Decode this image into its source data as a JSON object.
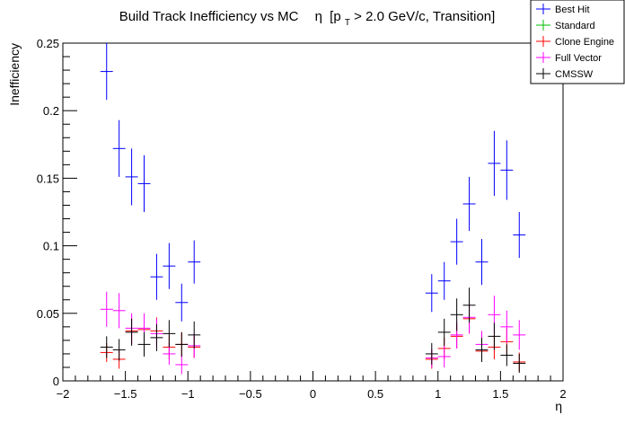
{
  "chart_data": {
    "type": "scatter",
    "title": "Build Track Inefficiency vs MC",
    "title_eta": "η",
    "title_bracket_open": "[p",
    "title_subscript": "T",
    "title_rest": " > 2.0 GeV/c, Transition]",
    "xlabel": "η",
    "ylabel": "Inefficiency",
    "xlim": [
      -2,
      2
    ],
    "ylim": [
      0,
      0.25
    ],
    "x_ticks": [
      -2,
      -1.5,
      -1,
      -0.5,
      0,
      0.5,
      1,
      1.5,
      2
    ],
    "x_tick_labels": [
      "−2",
      "−1.5",
      "−1",
      "−0.5",
      "0",
      "0.5",
      "1",
      "1.5",
      "2"
    ],
    "y_ticks": [
      0,
      0.05,
      0.1,
      0.15,
      0.2,
      0.25
    ],
    "y_tick_labels": [
      "0",
      "0.05",
      "0.1",
      "0.15",
      "0.2",
      "0.25"
    ],
    "bin_half_width": 0.05,
    "legend_position": "top-right",
    "series": [
      {
        "name": "Best Hit",
        "color": "#0000ff",
        "points": [
          {
            "x": -1.65,
            "y": 0.229,
            "err": 0.021
          },
          {
            "x": -1.55,
            "y": 0.172,
            "err": 0.021
          },
          {
            "x": -1.45,
            "y": 0.151,
            "err": 0.021
          },
          {
            "x": -1.35,
            "y": 0.146,
            "err": 0.021
          },
          {
            "x": -1.25,
            "y": 0.077,
            "err": 0.017
          },
          {
            "x": -1.15,
            "y": 0.085,
            "err": 0.017
          },
          {
            "x": -1.05,
            "y": 0.058,
            "err": 0.014
          },
          {
            "x": -0.95,
            "y": 0.088,
            "err": 0.016
          },
          {
            "x": 0.95,
            "y": 0.065,
            "err": 0.014
          },
          {
            "x": 1.05,
            "y": 0.074,
            "err": 0.014
          },
          {
            "x": 1.15,
            "y": 0.103,
            "err": 0.017
          },
          {
            "x": 1.25,
            "y": 0.131,
            "err": 0.02
          },
          {
            "x": 1.35,
            "y": 0.088,
            "err": 0.017
          },
          {
            "x": 1.45,
            "y": 0.161,
            "err": 0.024
          },
          {
            "x": 1.55,
            "y": 0.156,
            "err": 0.022
          },
          {
            "x": 1.65,
            "y": 0.108,
            "err": 0.017
          }
        ]
      },
      {
        "name": "Standard",
        "color": "#00bb00",
        "points": []
      },
      {
        "name": "Clone Engine",
        "color": "#ff0000",
        "points": [
          {
            "x": -1.65,
            "y": 0.021,
            "err": 0.007
          },
          {
            "x": -1.55,
            "y": 0.016,
            "err": 0.007
          },
          {
            "x": -1.45,
            "y": 0.037,
            "err": 0.01
          },
          {
            "x": -1.35,
            "y": 0.038,
            "err": 0.01
          },
          {
            "x": -1.25,
            "y": 0.037,
            "err": 0.01
          },
          {
            "x": -1.15,
            "y": 0.025,
            "err": 0.009
          },
          {
            "x": -1.05,
            "y": 0.027,
            "err": 0.009
          },
          {
            "x": -0.95,
            "y": 0.025,
            "err": 0.008
          },
          {
            "x": 0.95,
            "y": 0.016,
            "err": 0.007
          },
          {
            "x": 1.05,
            "y": 0.024,
            "err": 0.008
          },
          {
            "x": 1.15,
            "y": 0.033,
            "err": 0.009
          },
          {
            "x": 1.25,
            "y": 0.046,
            "err": 0.011
          },
          {
            "x": 1.35,
            "y": 0.022,
            "err": 0.008
          },
          {
            "x": 1.45,
            "y": 0.025,
            "err": 0.009
          },
          {
            "x": 1.55,
            "y": 0.029,
            "err": 0.01
          },
          {
            "x": 1.65,
            "y": 0.014,
            "err": 0.007
          }
        ]
      },
      {
        "name": "Full Vector",
        "color": "#ff00ff",
        "points": [
          {
            "x": -1.65,
            "y": 0.053,
            "err": 0.013
          },
          {
            "x": -1.55,
            "y": 0.052,
            "err": 0.013
          },
          {
            "x": -1.45,
            "y": 0.039,
            "err": 0.011
          },
          {
            "x": -1.35,
            "y": 0.039,
            "err": 0.011
          },
          {
            "x": -1.25,
            "y": 0.035,
            "err": 0.011
          },
          {
            "x": -1.15,
            "y": 0.02,
            "err": 0.008
          },
          {
            "x": -1.05,
            "y": 0.012,
            "err": 0.007
          },
          {
            "x": -0.95,
            "y": 0.026,
            "err": 0.009
          },
          {
            "x": 0.95,
            "y": 0.017,
            "err": 0.007
          },
          {
            "x": 1.05,
            "y": 0.018,
            "err": 0.008
          },
          {
            "x": 1.15,
            "y": 0.034,
            "err": 0.01
          },
          {
            "x": 1.25,
            "y": 0.047,
            "err": 0.012
          },
          {
            "x": 1.35,
            "y": 0.027,
            "err": 0.01
          },
          {
            "x": 1.45,
            "y": 0.049,
            "err": 0.014
          },
          {
            "x": 1.55,
            "y": 0.04,
            "err": 0.012
          },
          {
            "x": 1.65,
            "y": 0.034,
            "err": 0.011
          }
        ]
      },
      {
        "name": "CMSSW",
        "color": "#000000",
        "points": [
          {
            "x": -1.65,
            "y": 0.025,
            "err": 0.008
          },
          {
            "x": -1.55,
            "y": 0.023,
            "err": 0.008
          },
          {
            "x": -1.45,
            "y": 0.036,
            "err": 0.01
          },
          {
            "x": -1.35,
            "y": 0.027,
            "err": 0.009
          },
          {
            "x": -1.25,
            "y": 0.032,
            "err": 0.01
          },
          {
            "x": -1.15,
            "y": 0.035,
            "err": 0.01
          },
          {
            "x": -1.05,
            "y": 0.027,
            "err": 0.009
          },
          {
            "x": -0.95,
            "y": 0.034,
            "err": 0.01
          },
          {
            "x": 0.95,
            "y": 0.02,
            "err": 0.008
          },
          {
            "x": 1.05,
            "y": 0.036,
            "err": 0.01
          },
          {
            "x": 1.15,
            "y": 0.049,
            "err": 0.012
          },
          {
            "x": 1.25,
            "y": 0.056,
            "err": 0.013
          },
          {
            "x": 1.35,
            "y": 0.023,
            "err": 0.009
          },
          {
            "x": 1.45,
            "y": 0.033,
            "err": 0.01
          },
          {
            "x": 1.55,
            "y": 0.019,
            "err": 0.008
          },
          {
            "x": 1.65,
            "y": 0.013,
            "err": 0.007
          }
        ]
      }
    ]
  }
}
